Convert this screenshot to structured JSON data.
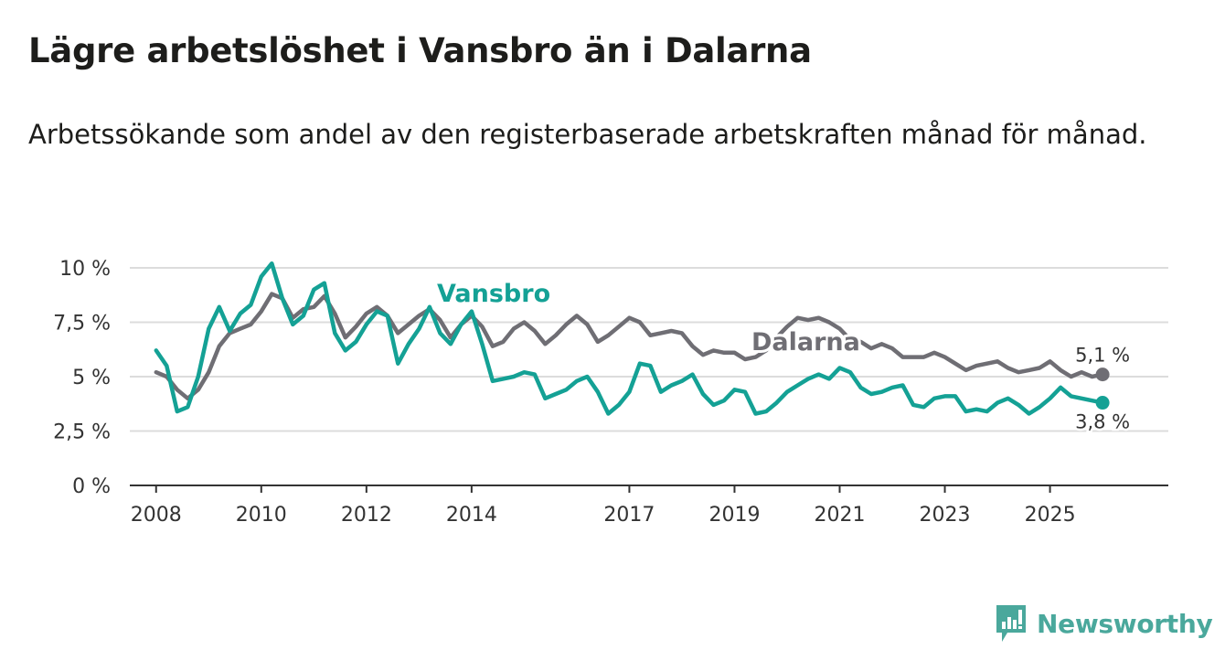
{
  "title": "Lägre arbetslöshet i Vansbro än i Dalarna",
  "subtitle": "Arbetssökande som andel av den registerbaserade arbetskraften månad för månad.",
  "logo": {
    "name": "Newsworthy",
    "icon": "newsworthy-chart-icon",
    "color": "#4aa89c"
  },
  "chart_data": {
    "type": "line",
    "title": "Lägre arbetslöshet i Vansbro än i Dalarna",
    "xlabel": "",
    "ylabel": "",
    "ylim": [
      0,
      10
    ],
    "xlim": [
      2007.5,
      2027.25
    ],
    "grid": true,
    "yticks": [
      0,
      2.5,
      5,
      7.5,
      10
    ],
    "ytick_labels": [
      "0 %",
      "2,5 %",
      "5 %",
      "7,5 %",
      "10 %"
    ],
    "xticks": [
      2008,
      2010,
      2012,
      2014,
      2017,
      2019,
      2021,
      2023,
      2025
    ],
    "xtick_labels": [
      "2008",
      "2010",
      "2012",
      "2014",
      "2017",
      "2019",
      "2021",
      "2023",
      "2025"
    ],
    "series": [
      {
        "name": "Dalarna",
        "color": "#6f6e74",
        "end_label": "5,1 %",
        "x": [
          2008,
          2008.2,
          2008.4,
          2008.6,
          2008.8,
          2009,
          2009.2,
          2009.4,
          2009.6,
          2009.8,
          2010,
          2010.2,
          2010.4,
          2010.6,
          2010.8,
          2011,
          2011.2,
          2011.4,
          2011.6,
          2011.8,
          2012,
          2012.2,
          2012.4,
          2012.6,
          2012.8,
          2013,
          2013.2,
          2013.4,
          2013.6,
          2013.8,
          2014,
          2014.2,
          2014.4,
          2014.6,
          2014.8,
          2015,
          2015.2,
          2015.4,
          2015.6,
          2015.8,
          2016,
          2016.2,
          2016.4,
          2016.6,
          2016.8,
          2017,
          2017.2,
          2017.4,
          2017.6,
          2017.8,
          2018,
          2018.2,
          2018.4,
          2018.6,
          2018.8,
          2019,
          2019.2,
          2019.4,
          2019.6,
          2019.8,
          2020,
          2020.2,
          2020.4,
          2020.6,
          2020.8,
          2021,
          2021.2,
          2021.4,
          2021.6,
          2021.8,
          2022,
          2022.2,
          2022.4,
          2022.6,
          2022.8,
          2023,
          2023.2,
          2023.4,
          2023.6,
          2023.8,
          2024,
          2024.2,
          2024.4,
          2024.6,
          2024.8,
          2025,
          2025.2,
          2025.4,
          2025.6,
          2025.8,
          2026
        ],
        "values": [
          5.2,
          5.0,
          4.4,
          4.0,
          4.4,
          5.2,
          6.4,
          7.0,
          7.2,
          7.4,
          8.0,
          8.8,
          8.6,
          7.7,
          8.1,
          8.2,
          8.7,
          7.9,
          6.8,
          7.3,
          7.9,
          8.2,
          7.8,
          7.0,
          7.4,
          7.8,
          8.1,
          7.6,
          6.8,
          7.4,
          7.8,
          7.3,
          6.4,
          6.6,
          7.2,
          7.5,
          7.1,
          6.5,
          6.9,
          7.4,
          7.8,
          7.4,
          6.6,
          6.9,
          7.3,
          7.7,
          7.5,
          6.9,
          7.0,
          7.1,
          7.0,
          6.4,
          6.0,
          6.2,
          6.1,
          6.1,
          5.8,
          5.9,
          6.2,
          6.8,
          7.3,
          7.7,
          7.6,
          7.7,
          7.5,
          7.2,
          6.7,
          6.6,
          6.3,
          6.5,
          6.3,
          5.9,
          5.9,
          5.9,
          6.1,
          5.9,
          5.6,
          5.3,
          5.5,
          5.6,
          5.7,
          5.4,
          5.2,
          5.3,
          5.4,
          5.7,
          5.3,
          5.0,
          5.2,
          5.0,
          5.1
        ]
      },
      {
        "name": "Vansbro",
        "color": "#14a195",
        "end_label": "3,8 %",
        "x": [
          2008,
          2008.2,
          2008.4,
          2008.6,
          2008.8,
          2009,
          2009.2,
          2009.4,
          2009.6,
          2009.8,
          2010,
          2010.2,
          2010.4,
          2010.6,
          2010.8,
          2011,
          2011.2,
          2011.4,
          2011.6,
          2011.8,
          2012,
          2012.2,
          2012.4,
          2012.6,
          2012.8,
          2013,
          2013.2,
          2013.4,
          2013.6,
          2013.8,
          2014,
          2014.2,
          2014.4,
          2014.6,
          2014.8,
          2015,
          2015.2,
          2015.4,
          2015.6,
          2015.8,
          2016,
          2016.2,
          2016.4,
          2016.6,
          2016.8,
          2017,
          2017.2,
          2017.4,
          2017.6,
          2017.8,
          2018,
          2018.2,
          2018.4,
          2018.6,
          2018.8,
          2019,
          2019.2,
          2019.4,
          2019.6,
          2019.8,
          2020,
          2020.2,
          2020.4,
          2020.6,
          2020.8,
          2021,
          2021.2,
          2021.4,
          2021.6,
          2021.8,
          2022,
          2022.2,
          2022.4,
          2022.6,
          2022.8,
          2023,
          2023.2,
          2023.4,
          2023.6,
          2023.8,
          2024,
          2024.2,
          2024.4,
          2024.6,
          2024.8,
          2025,
          2025.2,
          2025.4,
          2025.6,
          2025.8,
          2026
        ],
        "values": [
          6.2,
          5.5,
          3.4,
          3.6,
          5.0,
          7.2,
          8.2,
          7.1,
          7.9,
          8.3,
          9.6,
          10.2,
          8.6,
          7.4,
          7.8,
          9.0,
          9.3,
          7.0,
          6.2,
          6.6,
          7.4,
          8.0,
          7.8,
          5.6,
          6.5,
          7.2,
          8.2,
          7.0,
          6.5,
          7.4,
          8.0,
          6.5,
          4.8,
          4.9,
          5.0,
          5.2,
          5.1,
          4.0,
          4.2,
          4.4,
          4.8,
          5.0,
          4.3,
          3.3,
          3.7,
          4.3,
          5.6,
          5.5,
          4.3,
          4.6,
          4.8,
          5.1,
          4.2,
          3.7,
          3.9,
          4.4,
          4.3,
          3.3,
          3.4,
          3.8,
          4.3,
          4.6,
          4.9,
          5.1,
          4.9,
          5.4,
          5.2,
          4.5,
          4.2,
          4.3,
          4.5,
          4.6,
          3.7,
          3.6,
          4.0,
          4.1,
          4.1,
          3.4,
          3.5,
          3.4,
          3.8,
          4.0,
          3.7,
          3.3,
          3.6,
          4.0,
          4.5,
          4.1,
          4.0,
          3.9,
          3.8
        ]
      }
    ]
  }
}
